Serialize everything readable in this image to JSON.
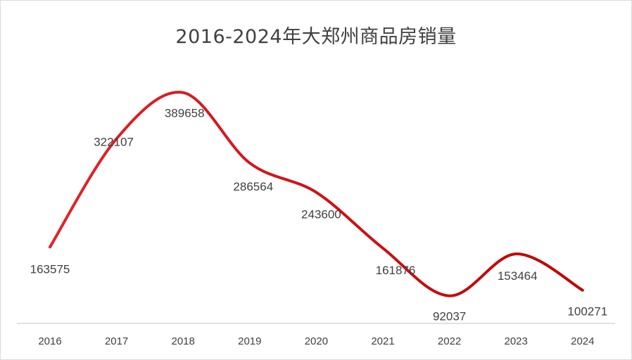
{
  "chart_data": {
    "type": "line",
    "title": "2016-2024年大郑州商品房销量",
    "xlabel": "",
    "ylabel": "",
    "categories": [
      "2016",
      "2017",
      "2018",
      "2019",
      "2020",
      "2021",
      "2022",
      "2023",
      "2024"
    ],
    "series": [
      {
        "values": [
          163575,
          322107,
          389658,
          286564,
          243600,
          161876,
          92037,
          153464,
          100271
        ],
        "color": "#e0242b",
        "color_end": "#c00000",
        "smooth": true
      }
    ],
    "data_labels": true,
    "grid": false,
    "legend": "none"
  }
}
